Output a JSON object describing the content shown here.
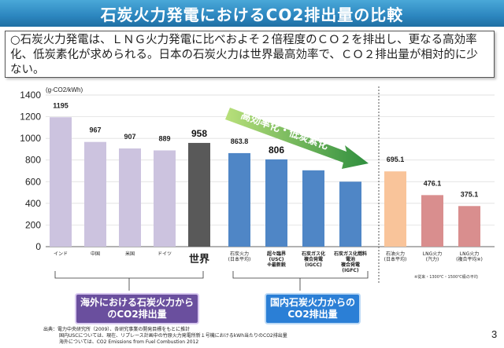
{
  "title": "石炭火力発電におけるCO2排出量の比較",
  "description": "○石炭火力発電は、ＬＮＧ火力発電に比べおよそ２倍程度のＣＯ２を排出し、更なる高効率化、低炭素化が求められる。日本の石炭火力は世界最高効率で、ＣＯ２排出量が相対的に少ない。",
  "arrow_label": "高効率化・低炭素化",
  "group_labels": {
    "overseas": "海外における石炭火力からのCO2排出量",
    "domestic": "国内石炭火力からのCO2排出量"
  },
  "lng_note": "※従来・1300℃・1500℃級の平均",
  "source": [
    "出典：電力中央研究所（2009）、各研究事業の開発目標をもとに推計",
    "国内USCについては、現在、リプレース計画中の竹原火力発電所新１号機におけるkWh当たりのCO2排出量",
    "海外については、CO2 Emissions from Fuel Combustion 2012"
  ],
  "page_number": "3",
  "colors": {
    "overseas": "#ccc3df",
    "world": "#595959",
    "domestic": "#4f86c6",
    "japan_coal": "#f9c49a",
    "lng": "#d98e8e",
    "green_label": "#2e9e3e",
    "red_label": "#e3262a",
    "arrow_start": "#b9e07b",
    "arrow_end": "#2f8e3e"
  },
  "chart_data": {
    "type": "bar",
    "ylabel": "(g-CO2/kWh)",
    "ylim": [
      0,
      1400
    ],
    "yticks": [
      0,
      200,
      400,
      600,
      800,
      1000,
      1200,
      1400
    ],
    "bars": [
      {
        "category": [
          "インド"
        ],
        "value": 1195,
        "label": "1195",
        "color_key": "overseas",
        "label_style": "normal"
      },
      {
        "category": [
          "中国"
        ],
        "value": 967,
        "label": "967",
        "color_key": "overseas",
        "label_style": "normal"
      },
      {
        "category": [
          "米国"
        ],
        "value": 907,
        "label": "907",
        "color_key": "overseas",
        "label_style": "normal"
      },
      {
        "category": [
          "ドイツ"
        ],
        "value": 889,
        "label": "889",
        "color_key": "overseas",
        "label_style": "normal"
      },
      {
        "category": [
          "世界"
        ],
        "value": 958,
        "label": "958",
        "color_key": "world",
        "label_style": "big",
        "cat_style": "red"
      },
      {
        "category": [
          "石炭火力",
          "(日本平均)"
        ],
        "value": 863.8,
        "label": "863.8",
        "color_key": "domestic",
        "label_style": "normal"
      },
      {
        "category": [
          "超々臨界",
          "(USC)",
          "※最新鋭"
        ],
        "value": 806,
        "label": "806",
        "color_key": "domestic",
        "label_style": "big",
        "cat_style": "green"
      },
      {
        "category": [
          "石炭ガス化",
          "複合発電",
          "(IGCC)"
        ],
        "value": 705,
        "label": "",
        "color_key": "domestic",
        "label_style": "normal",
        "cat_style": "green"
      },
      {
        "category": [
          "石炭ガス化燃料",
          "電池",
          "複合発電",
          "(IGFC)"
        ],
        "value": 600,
        "label": "",
        "color_key": "domestic",
        "label_style": "normal",
        "cat_style": "green"
      },
      {
        "category": [
          "石油火力",
          "(日本平均)"
        ],
        "value": 695.1,
        "label": "695.1",
        "color_key": "japan_coal",
        "label_style": "normal"
      },
      {
        "category": [
          "LNG火力",
          "(汽力)"
        ],
        "value": 476.1,
        "label": "476.1",
        "color_key": "lng",
        "label_style": "normal"
      },
      {
        "category": [
          "LNG火力",
          "(複合平均※)"
        ],
        "value": 375.1,
        "label": "375.1",
        "color_key": "lng",
        "label_style": "normal"
      }
    ]
  }
}
